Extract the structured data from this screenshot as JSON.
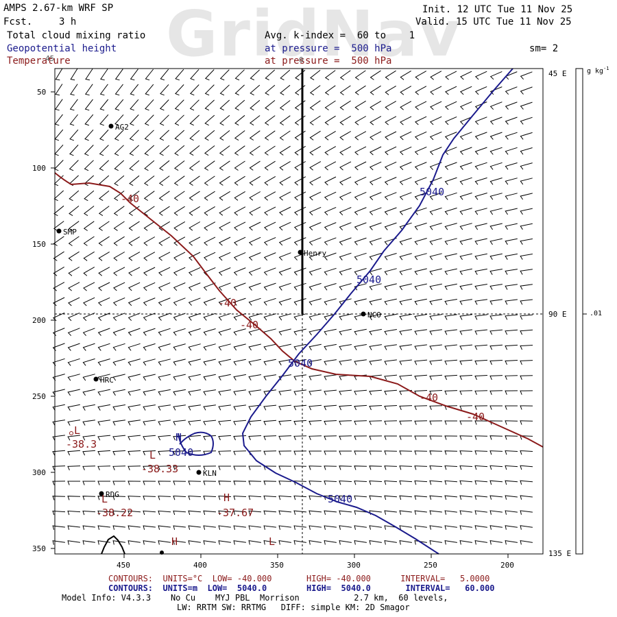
{
  "watermark": "GridNav",
  "header": {
    "model": "AMPS 2.67-km WRF SP",
    "fcst_label": "Fcst.",
    "fcst_value": "3 h",
    "init": "Init. 12 UTC Tue 11 Nov 25",
    "valid": "Valid. 15 UTC Tue 11 Nov 25",
    "field1": "Total cloud mixing ratio",
    "field1_desc": "Avg. k-index =  60 to    1",
    "field2": "Geopotential height",
    "field2_desc": "at pressure =  500 hPa",
    "field3": "Temperature",
    "field3_desc": "at pressure =  500 hPa",
    "smoothing": "sm= 2",
    "corner_marker": "0"
  },
  "colors": {
    "height_contour": "#1a1a8c",
    "temperature_contour": "#8b1a1a",
    "wind_barbs": "#000000",
    "terrain": "#000000"
  },
  "map": {
    "x_ticks": [
      "450",
      "400",
      "350",
      "300",
      "250",
      "200"
    ],
    "y_ticks": [
      "50",
      "100",
      "150",
      "200",
      "250",
      "300",
      "350"
    ],
    "left_top_label": "45",
    "right_labels": [
      "45 E",
      "90 E",
      "135 E"
    ],
    "colorbar_unit": "g kg",
    "colorbar_unit_sup": "-1",
    "colorbar_value": ".01",
    "stations": [
      {
        "name": "AG2"
      },
      {
        "name": "SMP"
      },
      {
        "name": "Henry"
      },
      {
        "name": "NCO"
      },
      {
        "name": "HRC"
      },
      {
        "name": "KLN"
      },
      {
        "name": "RDG"
      }
    ],
    "height_labels": [
      "5040",
      "5040",
      "5040",
      "5040",
      "5040"
    ],
    "height_extrema": [
      {
        "type": "H",
        "value": "5040"
      }
    ],
    "temp_labels": [
      "-40",
      "-40",
      "-40",
      "-40",
      "-40"
    ],
    "temp_extrema": [
      {
        "type": "L",
        "value": "-38.3"
      },
      {
        "type": "L",
        "value": "-38.33"
      },
      {
        "type": "L",
        "value": "-38.22"
      },
      {
        "type": "H",
        "value": "-37.67"
      },
      {
        "type": "H",
        "value": ""
      },
      {
        "type": "L",
        "value": ""
      }
    ]
  },
  "footer": {
    "temp_line": "CONTOURS:  UNITS=°C  LOW= -40.000       HIGH= -40.000      INTERVAL=   5.0000",
    "height_line": "CONTOURS:  UNITS=m  LOW=  5040.0        HIGH=  5040.0       INTERVAL=   60.000",
    "model_info": "Model Info: V4.3.3    No Cu    MYJ PBL  Morrison           2.7 km,  60 levels,",
    "physics": "LW: RRTM SW: RRTMG   DIFF: simple KM: 2D Smagor"
  }
}
